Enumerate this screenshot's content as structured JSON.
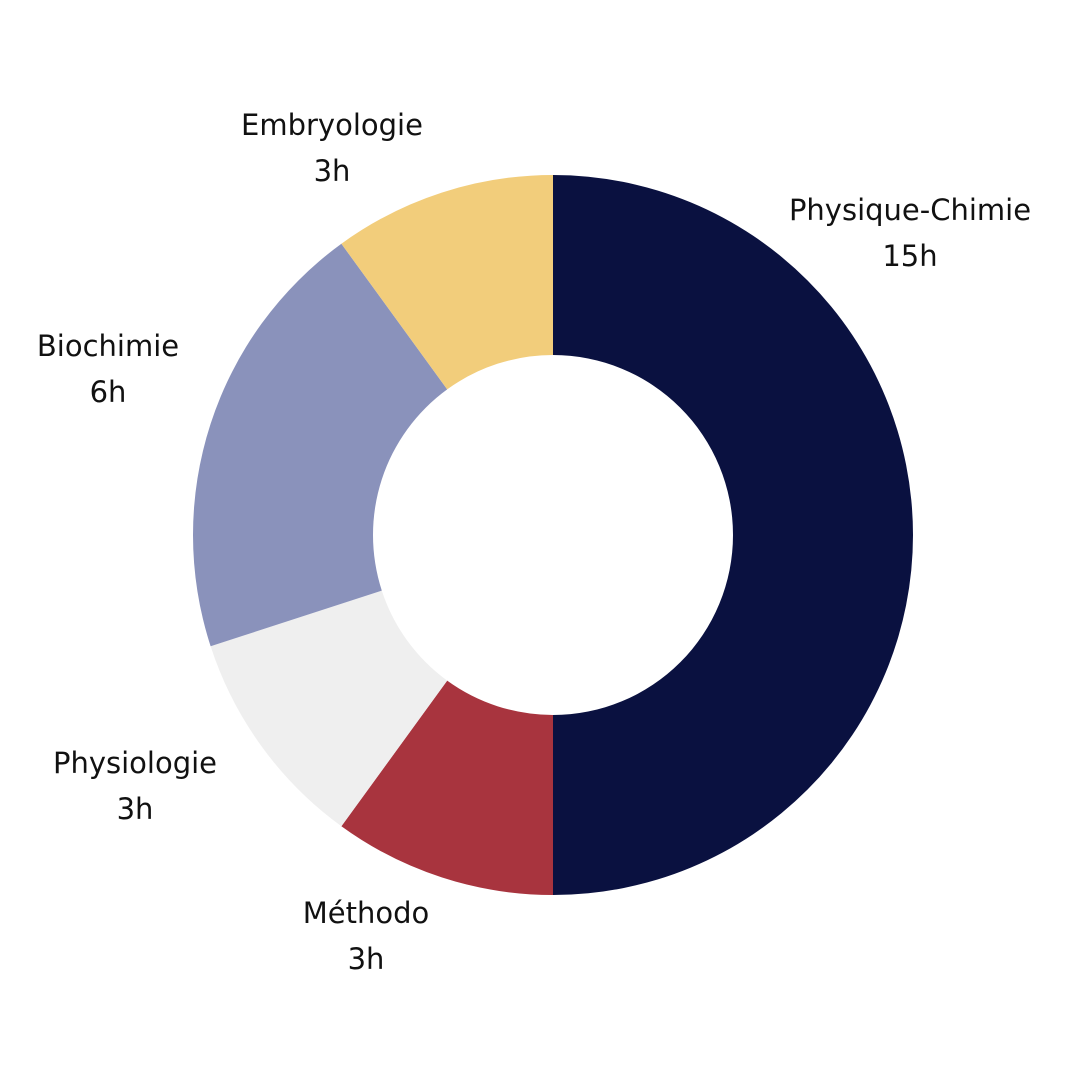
{
  "chart_data": {
    "type": "donut",
    "categories": [
      "Physique-Chimie",
      "Méthodo",
      "Physiologie",
      "Biochimie",
      "Embryologie"
    ],
    "values": [
      15,
      3,
      3,
      6,
      3
    ],
    "value_labels": [
      "15h",
      "3h",
      "3h",
      "6h",
      "3h"
    ],
    "colors": [
      "#0a1140",
      "#a8343e",
      "#efefef",
      "#8a92bb",
      "#f2cd7b"
    ]
  }
}
